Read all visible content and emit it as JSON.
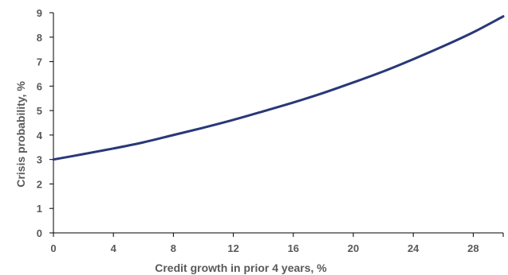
{
  "chart_data": {
    "type": "line",
    "xlabel": "Credit growth in prior 4 years, %",
    "ylabel": "Crisis probability, %",
    "xlim": [
      0,
      30
    ],
    "ylim": [
      0,
      9
    ],
    "x_ticks": [
      0,
      4,
      8,
      12,
      16,
      20,
      24,
      28
    ],
    "y_ticks": [
      0,
      1,
      2,
      3,
      4,
      5,
      6,
      7,
      8,
      9
    ],
    "grid": false,
    "legend": "none",
    "series": [
      {
        "color": "#283878",
        "x": [
          0,
          2,
          4,
          6,
          8,
          10,
          12,
          14,
          16,
          18,
          20,
          22,
          24,
          26,
          28,
          30
        ],
        "y": [
          3.0,
          3.22,
          3.45,
          3.7,
          4.0,
          4.3,
          4.62,
          4.97,
          5.33,
          5.72,
          6.15,
          6.6,
          7.1,
          7.63,
          8.2,
          8.85
        ]
      }
    ]
  }
}
